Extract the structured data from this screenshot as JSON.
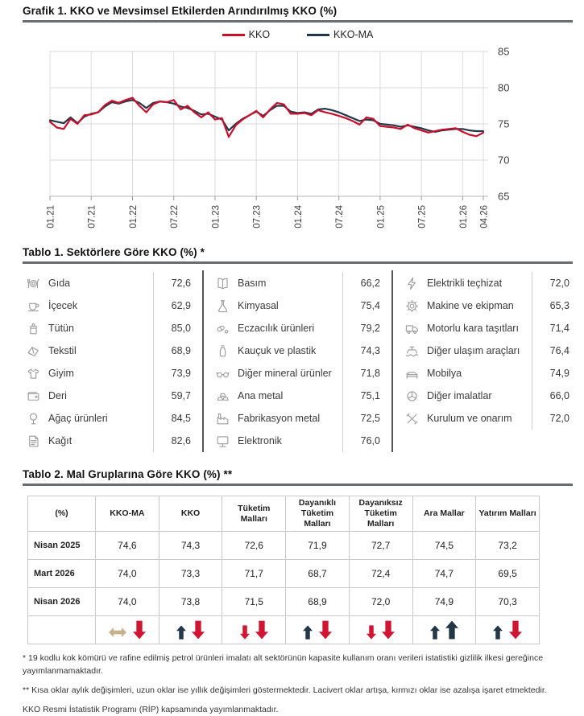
{
  "grafik": {
    "title": "Grafik 1. KKO ve Mevsimsel Etkilerden Arındırılmış KKO (%)",
    "legend": [
      {
        "label": "KKO",
        "color": "#c8102e"
      },
      {
        "label": "KKO-MA",
        "color": "#243746"
      }
    ]
  },
  "chart_data": {
    "type": "line",
    "title": "KKO ve Mevsimsel Etkilerden Arındırılmış KKO (%)",
    "x_unit": "month",
    "x_range": [
      "01.21",
      "04.26"
    ],
    "tick_labels": [
      "01.21",
      "07.21",
      "01.22",
      "07.22",
      "01.23",
      "07.23",
      "01.24",
      "07.24",
      "01.25",
      "07.25",
      "01.26",
      "04.26"
    ],
    "tick_indices": [
      0,
      6,
      12,
      18,
      24,
      30,
      36,
      42,
      48,
      54,
      60,
      63
    ],
    "ylim": [
      65,
      85
    ],
    "yticks": [
      65,
      70,
      75,
      80,
      85
    ],
    "grid": true,
    "legend_position": "top",
    "series": [
      {
        "name": "KKO",
        "color": "#c8102e",
        "values": [
          75.3,
          74.5,
          74.3,
          75.7,
          75.0,
          76.2,
          76.3,
          76.6,
          77.6,
          78.2,
          77.9,
          78.3,
          78.6,
          77.5,
          76.6,
          77.7,
          78.1,
          78.0,
          78.3,
          77.0,
          77.5,
          76.6,
          75.9,
          76.6,
          75.6,
          75.8,
          73.2,
          74.8,
          75.6,
          76.2,
          76.8,
          75.9,
          77.0,
          77.9,
          77.7,
          76.4,
          76.4,
          76.5,
          76.2,
          76.9,
          76.6,
          76.4,
          76.1,
          75.8,
          75.4,
          74.9,
          75.9,
          75.7,
          74.7,
          74.6,
          74.5,
          74.3,
          74.9,
          74.4,
          74.1,
          73.8,
          74.0,
          74.2,
          74.3,
          74.4,
          73.9,
          73.5,
          73.3,
          73.8
        ]
      },
      {
        "name": "KKO-MA",
        "color": "#243746",
        "values": [
          75.5,
          75.3,
          75.1,
          75.9,
          75.1,
          76.0,
          76.4,
          76.6,
          77.4,
          78.0,
          77.8,
          78.1,
          78.3,
          77.9,
          77.2,
          77.9,
          78.1,
          78.0,
          77.8,
          77.4,
          77.2,
          76.8,
          76.3,
          76.4,
          76.0,
          75.6,
          74.1,
          75.0,
          75.7,
          76.2,
          76.7,
          76.1,
          76.9,
          77.5,
          77.5,
          76.7,
          76.5,
          76.6,
          76.4,
          77.0,
          77.1,
          76.9,
          76.6,
          76.2,
          75.8,
          75.4,
          75.6,
          75.5,
          75.0,
          74.9,
          74.8,
          74.6,
          74.8,
          74.6,
          74.4,
          74.1,
          73.9,
          74.1,
          74.2,
          74.3,
          74.3,
          74.1,
          74.0,
          74.0
        ]
      }
    ]
  },
  "tablo1": {
    "title": "Tablo 1. Sektörlere Göre KKO (%) *",
    "columns": [
      [
        {
          "icon": "food-icon",
          "name": "Gıda",
          "value": "72,6"
        },
        {
          "icon": "beverage-icon",
          "name": "İçecek",
          "value": "62,9"
        },
        {
          "icon": "tobacco-icon",
          "name": "Tütün",
          "value": "85,0"
        },
        {
          "icon": "textile-icon",
          "name": "Tekstil",
          "value": "68,9"
        },
        {
          "icon": "clothing-icon",
          "name": "Giyim",
          "value": "73,9"
        },
        {
          "icon": "leather-icon",
          "name": "Deri",
          "value": "59,7"
        },
        {
          "icon": "wood-icon",
          "name": "Ağaç ürünleri",
          "value": "84,5"
        },
        {
          "icon": "paper-icon",
          "name": "Kağıt",
          "value": "82,6"
        }
      ],
      [
        {
          "icon": "printing-icon",
          "name": "Basım",
          "value": "66,2"
        },
        {
          "icon": "chemical-icon",
          "name": "Kimyasal",
          "value": "75,4"
        },
        {
          "icon": "pharma-icon",
          "name": "Eczacılık ürünleri",
          "value": "79,2"
        },
        {
          "icon": "plastic-icon",
          "name": "Kauçuk ve plastik",
          "value": "74,3"
        },
        {
          "icon": "mineral-icon",
          "name": "Diğer mineral ürünler",
          "value": "71,8"
        },
        {
          "icon": "metal-icon",
          "name": "Ana metal",
          "value": "75,1"
        },
        {
          "icon": "factory-icon",
          "name": "Fabrikasyon metal",
          "value": "72,5"
        },
        {
          "icon": "electronics-icon",
          "name": "Elektronik",
          "value": "76,0"
        }
      ],
      [
        {
          "icon": "electrical-icon",
          "name": "Elektrikli teçhizat",
          "value": "72,0"
        },
        {
          "icon": "machinery-icon",
          "name": "Makine ve ekipman",
          "value": "65,3"
        },
        {
          "icon": "truck-icon",
          "name": "Motorlu kara taşıtları",
          "value": "71,4"
        },
        {
          "icon": "ship-icon",
          "name": "Diğer ulaşım araçları",
          "value": "76,4"
        },
        {
          "icon": "furniture-icon",
          "name": "Mobilya",
          "value": "74,9"
        },
        {
          "icon": "fan-icon",
          "name": "Diğer imalatlar",
          "value": "66,0"
        },
        {
          "icon": "repair-icon",
          "name": "Kurulum ve onarım",
          "value": "72,0"
        }
      ]
    ]
  },
  "tablo2": {
    "title": "Tablo 2. Mal Gruplarına Göre KKO (%) **",
    "headers": [
      "(%)",
      "KKO-MA",
      "KKO",
      "Tüketim Malları",
      "Dayanıklı Tüketim Malları",
      "Dayanıksız Tüketim Malları",
      "Ara Mallar",
      "Yatırım Malları"
    ],
    "rows": [
      {
        "label": "Nisan 2025",
        "values": [
          "74,6",
          "74,3",
          "72,6",
          "71,9",
          "72,7",
          "74,5",
          "73,2"
        ]
      },
      {
        "label": "Mart 2026",
        "values": [
          "74,0",
          "73,3",
          "71,7",
          "68,7",
          "72,4",
          "74,7",
          "69,5"
        ]
      },
      {
        "label": "Nisan 2026",
        "values": [
          "74,0",
          "73,8",
          "71,5",
          "68,9",
          "72,0",
          "74,9",
          "70,3"
        ]
      }
    ],
    "arrows": [
      {
        "monthly": "flat",
        "yearly": "down"
      },
      {
        "monthly": "up",
        "yearly": "down"
      },
      {
        "monthly": "down",
        "yearly": "down"
      },
      {
        "monthly": "up",
        "yearly": "down"
      },
      {
        "monthly": "down",
        "yearly": "down"
      },
      {
        "monthly": "up",
        "yearly": "up"
      },
      {
        "monthly": "up",
        "yearly": "down"
      }
    ],
    "arrow_colors": {
      "up": "#243746",
      "down": "#cf1532",
      "flat": "#c7b08a"
    }
  },
  "footnotes": [
    "* 19 kodlu kok kömürü ve rafine edilmiş petrol ürünleri imalatı alt sektörünün kapasite kullanım oranı verileri istatistiki gizlilik ilkesi gereğince yayımlanmamaktadır.",
    "** Kısa oklar aylık değişimleri, uzun oklar ise yıllık değişimleri göstermektedir. Lacivert oklar artışa, kırmızı oklar ise azalışa işaret etmektedir.",
    "KKO Resmi İstatistik Programı (RİP) kapsamında yayımlanmaktadır."
  ]
}
